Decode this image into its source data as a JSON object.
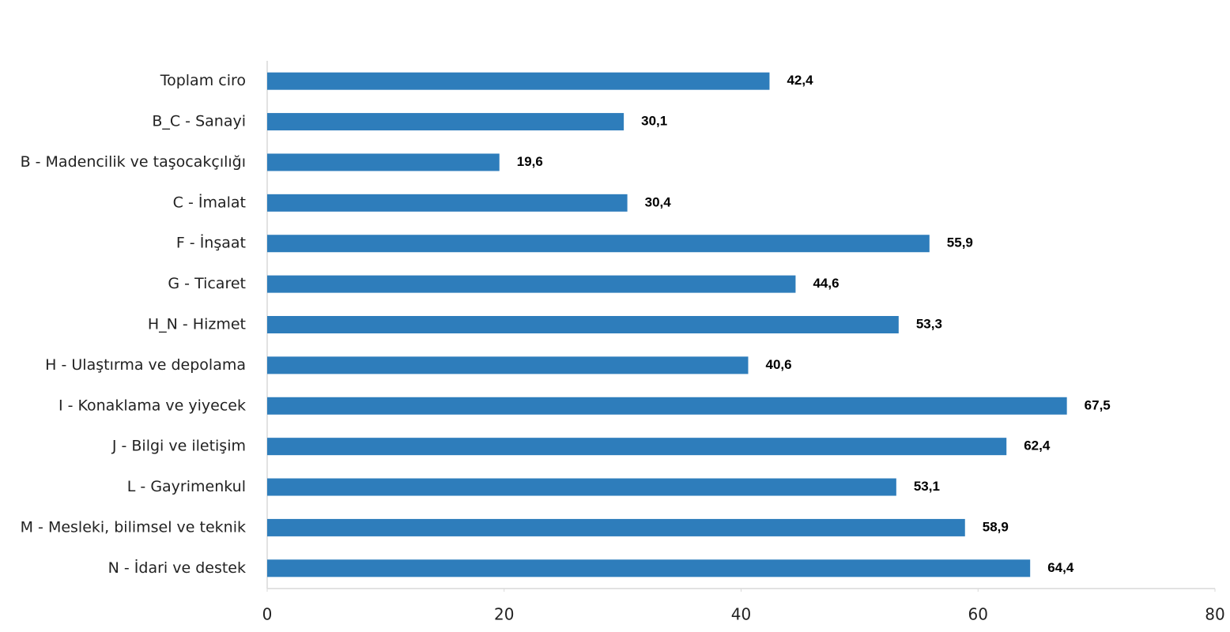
{
  "chart_data": {
    "type": "bar",
    "orientation": "horizontal",
    "categories": [
      "Toplam ciro",
      "B_C - Sanayi",
      "B - Madencilik ve taşocakçılığı",
      "C - İmalat",
      "F - İnşaat",
      "G - Ticaret",
      "H_N - Hizmet",
      "H - Ulaştırma ve depolama",
      "I - Konaklama ve yiyecek",
      "J - Bilgi ve iletişim",
      "L - Gayrimenkul",
      "M - Mesleki, bilimsel ve teknik",
      "N - İdari ve destek"
    ],
    "values": [
      42.4,
      30.1,
      19.6,
      30.4,
      55.9,
      44.6,
      53.3,
      40.6,
      67.5,
      62.4,
      53.1,
      58.9,
      64.4
    ],
    "value_labels": [
      "42,4",
      "30,1",
      "19,6",
      "30,4",
      "55,9",
      "44,6",
      "53,3",
      "40,6",
      "67,5",
      "62,4",
      "53,1",
      "58,9",
      "64,4"
    ],
    "color": "#2e7dbb",
    "xlim": [
      0,
      80
    ],
    "xticks": [
      0,
      20,
      40,
      60,
      80
    ],
    "grid": false
  }
}
